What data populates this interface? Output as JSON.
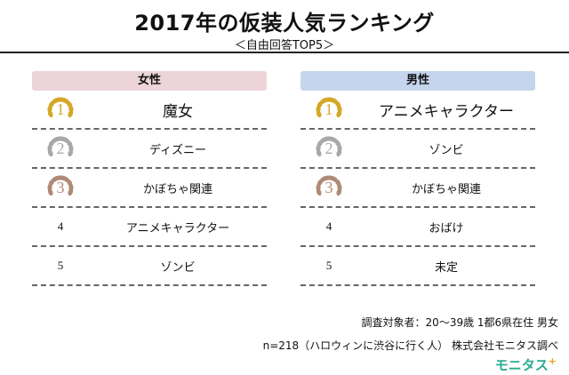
{
  "header": {
    "title": "2017年の仮装人気ランキング",
    "subtitle": "＜自由回答TOP5＞"
  },
  "women": {
    "label": "女性",
    "items": [
      {
        "rank": "1",
        "name": "魔女"
      },
      {
        "rank": "2",
        "name": "ディズニー"
      },
      {
        "rank": "3",
        "name": "かぼちゃ関連"
      },
      {
        "rank": "4",
        "name": "アニメキャラクター"
      },
      {
        "rank": "5",
        "name": "ゾンビ"
      }
    ]
  },
  "men": {
    "label": "男性",
    "items": [
      {
        "rank": "1",
        "name": "アニメキャラクター"
      },
      {
        "rank": "2",
        "name": "ゾンビ"
      },
      {
        "rank": "3",
        "name": "かぼちゃ関連"
      },
      {
        "rank": "4",
        "name": "おばけ"
      },
      {
        "rank": "5",
        "name": "未定"
      }
    ]
  },
  "footer": {
    "survey": "調査対象者：20〜39歳 1都6県在住 男女",
    "sample": "n=218（ハロウィンに渋谷に行く人） 株式会社モニタス調べ",
    "brand": "モニタス",
    "brand_mark": "+"
  },
  "colors": {
    "gold": "#d4a826",
    "silver": "#a8a8a8",
    "bronze": "#b08a78",
    "women_header": "#ecd4d8",
    "men_header": "#c4d5ed",
    "brand": "#2aaa91"
  },
  "icons": {
    "medal": "laurel-wreath-icon"
  }
}
